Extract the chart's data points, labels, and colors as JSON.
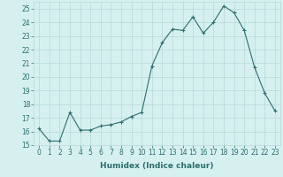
{
  "x": [
    0,
    1,
    2,
    3,
    4,
    5,
    6,
    7,
    8,
    9,
    10,
    11,
    12,
    13,
    14,
    15,
    16,
    17,
    18,
    19,
    20,
    21,
    22,
    23
  ],
  "y": [
    16.2,
    15.3,
    15.3,
    17.4,
    16.1,
    16.1,
    16.4,
    16.5,
    16.7,
    17.1,
    17.4,
    20.8,
    22.5,
    23.5,
    23.4,
    24.4,
    23.2,
    24.0,
    25.2,
    24.7,
    23.4,
    20.7,
    18.8,
    17.5
  ],
  "line_color": "#2d6e6e",
  "marker": "+",
  "marker_size": 3,
  "marker_linewidth": 0.8,
  "bg_color": "#d6f0f0",
  "grid_color": "#b8d8d8",
  "xlabel": "Humidex (Indice chaleur)",
  "xlim": [
    -0.5,
    23.5
  ],
  "ylim": [
    15,
    25.5
  ],
  "yticks": [
    15,
    16,
    17,
    18,
    19,
    20,
    21,
    22,
    23,
    24,
    25
  ],
  "xticks": [
    0,
    1,
    2,
    3,
    4,
    5,
    6,
    7,
    8,
    9,
    10,
    11,
    12,
    13,
    14,
    15,
    16,
    17,
    18,
    19,
    20,
    21,
    22,
    23
  ],
  "xlabel_fontsize": 6.5,
  "tick_fontsize": 5.5,
  "linewidth": 0.8
}
